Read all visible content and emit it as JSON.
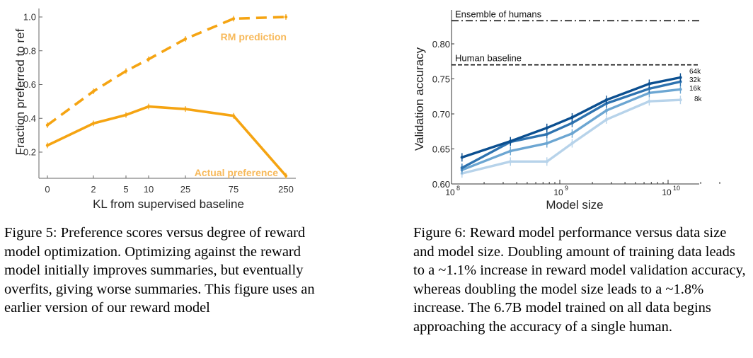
{
  "chart_data": [
    {
      "type": "line",
      "title": "",
      "xlabel": "KL from supervised baseline",
      "ylabel": "Fraction preferred to ref",
      "x_tick_labels": [
        "0",
        "2",
        "5",
        "10",
        "25",
        "75",
        "250"
      ],
      "y_ticks": [
        0.2,
        0.4,
        0.6,
        0.8,
        1.0
      ],
      "y_tick_labels": [
        "0.2",
        "0.4",
        "0.6",
        "0.8",
        "1.0"
      ],
      "ylim": [
        0.13,
        1.06
      ],
      "x_scale": "symlog",
      "grid": false,
      "color": "#F5A412",
      "series": [
        {
          "name": "RM prediction",
          "style": "dashed",
          "points": [
            {
              "x": 0,
              "y": 0.36
            },
            {
              "x": 2,
              "y": 0.56
            },
            {
              "x": 5,
              "y": 0.68
            },
            {
              "x": 10,
              "y": 0.75
            },
            {
              "x": 25,
              "y": 0.87
            },
            {
              "x": 75,
              "y": 0.99
            },
            {
              "x": 250,
              "y": 1.0
            }
          ]
        },
        {
          "name": "Actual preference",
          "style": "solid",
          "points": [
            {
              "x": 0,
              "y": 0.24
            },
            {
              "x": 2,
              "y": 0.37
            },
            {
              "x": 5,
              "y": 0.42
            },
            {
              "x": 10,
              "y": 0.47
            },
            {
              "x": 25,
              "y": 0.455
            },
            {
              "x": 75,
              "y": 0.415
            },
            {
              "x": 250,
              "y": 0.06
            }
          ]
        }
      ]
    },
    {
      "type": "line",
      "title": "",
      "xlabel": "Model size",
      "ylabel": "Validation accuracy",
      "x_scale": "log",
      "xlim": [
        100000000,
        30000000000
      ],
      "x_ticks": [
        100000000,
        1000000000,
        10000000000
      ],
      "x_tick_labels": [
        {
          "base": "10",
          "exp": "8"
        },
        {
          "base": "10",
          "exp": "9"
        },
        {
          "base": "10",
          "exp": "10"
        }
      ],
      "ylim": [
        0.6,
        0.85
      ],
      "y_ticks": [
        0.6,
        0.65,
        0.7,
        0.75,
        0.8
      ],
      "y_tick_labels": [
        "0.60",
        "0.65",
        "0.70",
        "0.75",
        "0.80"
      ],
      "grid": false,
      "reference_lines": [
        {
          "label": "Ensemble of humans",
          "y": 0.833,
          "style": "dashdot"
        },
        {
          "label": "Human baseline",
          "y": 0.77,
          "style": "dashed"
        }
      ],
      "x": [
        125000000,
        350000000,
        760000000,
        1300000000,
        2700000000,
        6700000000,
        13000000000
      ],
      "series": [
        {
          "name": "64k",
          "color": "#0B4F90",
          "values": [
            0.638,
            0.661,
            0.68,
            0.695,
            0.72,
            0.743,
            0.752
          ]
        },
        {
          "name": "32k",
          "color": "#2E73B0",
          "values": [
            0.623,
            0.66,
            0.671,
            0.687,
            0.715,
            0.736,
            0.746
          ]
        },
        {
          "name": "16k",
          "color": "#6CA6D2",
          "values": [
            0.62,
            0.647,
            0.658,
            0.672,
            0.705,
            0.73,
            0.735
          ]
        },
        {
          "name": "8k",
          "color": "#B7D3EA",
          "values": [
            0.615,
            0.632,
            0.632,
            0.658,
            0.692,
            0.718,
            0.72
          ]
        }
      ]
    }
  ],
  "captions": {
    "fig5": "Figure 5: Preference scores versus degree of reward model optimization. Optimizing against the reward model initially improves summaries, but eventually overfits, giving worse summaries. This figure uses an earlier version of our reward model",
    "fig6": "Figure 6: Reward model performance versus data size and model size. Doubling amount of training data leads to a ~1.1% increase in reward model validation accuracy, whereas doubling the model size leads to a ~1.8% increase. The 6.7B model trained on all data begins approaching the accuracy of a single human."
  }
}
